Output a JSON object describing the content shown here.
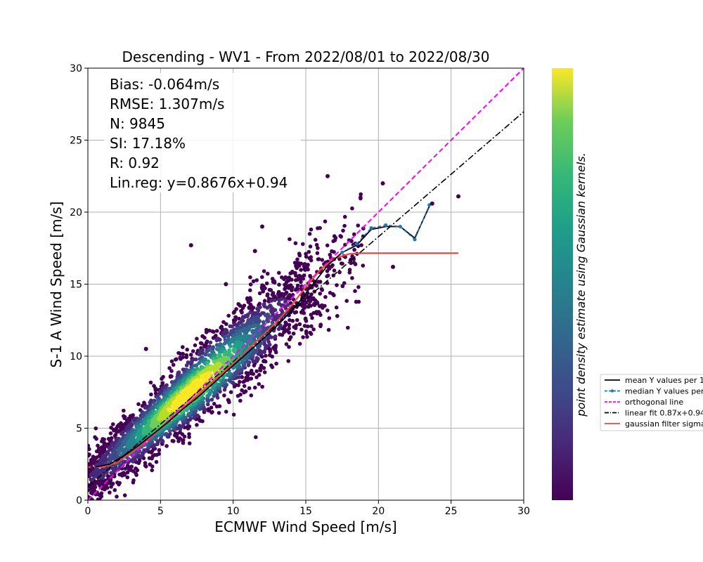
{
  "chart_data": {
    "type": "scatter",
    "title": "Descending - WV1 - From 2022/08/01 to 2022/08/30",
    "xlabel": "ECMWF Wind Speed [m/s]",
    "ylabel": "S-1 A Wind Speed [m/s]",
    "xlim": [
      0,
      30
    ],
    "ylim": [
      0,
      30
    ],
    "xticks": [
      0,
      5,
      10,
      15,
      20,
      25,
      30
    ],
    "yticks": [
      0,
      5,
      10,
      15,
      20,
      25,
      30
    ],
    "grid": true,
    "colormap": "viridis",
    "colorbar_label": "point density estimate using Gaussian kernels.",
    "stats": [
      "Bias: -0.064m/s",
      "RMSE: 1.307m/s",
      "N: 9845",
      "SI: 17.18%",
      "R: 0.92",
      "Lin.reg: y=0.8676x+0.94"
    ],
    "legend_position": "right, outside plot",
    "legend": [
      {
        "label": "mean Y values per 1",
        "color": "#000000",
        "style": "solid"
      },
      {
        "label": "median Y values per",
        "color": "#1f77b4",
        "style": "dashed-marker"
      },
      {
        "label": "orthogonal line",
        "color": "#ff00ff",
        "style": "dashed"
      },
      {
        "label": "linear fit 0.87x+0.94",
        "color": "#000000",
        "style": "dashdot"
      },
      {
        "label": "gaussian filter sigma",
        "color": "#ee4444",
        "style": "solid"
      }
    ],
    "lines": {
      "mean": {
        "x": [
          0.5,
          1.5,
          2.5,
          3.5,
          4.5,
          5.5,
          6.5,
          7.5,
          8.5,
          9.5,
          10.5,
          11.5,
          12.5,
          13.5,
          14.5,
          15.5,
          16.5,
          17.5,
          18.5,
          19.5,
          20.5,
          21.5,
          22.5,
          23.5
        ],
        "y": [
          2.3,
          2.5,
          3.1,
          3.8,
          4.6,
          5.4,
          6.3,
          7.1,
          8.0,
          8.9,
          9.8,
          10.7,
          11.6,
          12.6,
          13.7,
          15.0,
          16.3,
          17.2,
          17.7,
          18.8,
          19.0,
          19.0,
          18.2,
          20.4
        ]
      },
      "median": {
        "x": [
          17.5,
          18.5,
          19.5,
          20.5,
          21.5,
          22.5,
          23.5
        ],
        "y": [
          17.2,
          17.8,
          18.9,
          19.1,
          19.0,
          18.1,
          20.5
        ]
      },
      "orthogonal": {
        "x": [
          0,
          30
        ],
        "y": [
          0,
          30
        ]
      },
      "linear_fit": {
        "x": [
          0,
          30
        ],
        "y": [
          0.94,
          26.97
        ]
      },
      "gaussian": {
        "x": [
          0,
          1,
          2,
          3,
          4,
          5,
          6,
          7,
          8,
          9,
          10,
          11,
          12,
          13,
          14,
          15,
          16,
          17,
          18,
          19,
          20,
          21,
          22,
          23,
          24,
          25.5
        ],
        "y": [
          2.3,
          2.3,
          2.6,
          3.3,
          4.1,
          5.0,
          5.9,
          6.8,
          7.7,
          8.6,
          9.5,
          10.5,
          11.4,
          12.4,
          13.5,
          14.8,
          16.0,
          16.8,
          17.1,
          17.15,
          17.15,
          17.15,
          17.15,
          17.15,
          17.15,
          17.15
        ]
      }
    },
    "outliers": {
      "x": [
        25.5,
        16.5,
        20.3,
        7.1,
        23.7,
        12.0,
        21.0,
        9.5,
        4.0,
        0.3,
        11.5,
        6.0
      ],
      "y": [
        21.1,
        22.5,
        22.0,
        17.7,
        20.6,
        19.0,
        16.2,
        15.0,
        10.5,
        2.2,
        17.3,
        4.5
      ]
    }
  }
}
